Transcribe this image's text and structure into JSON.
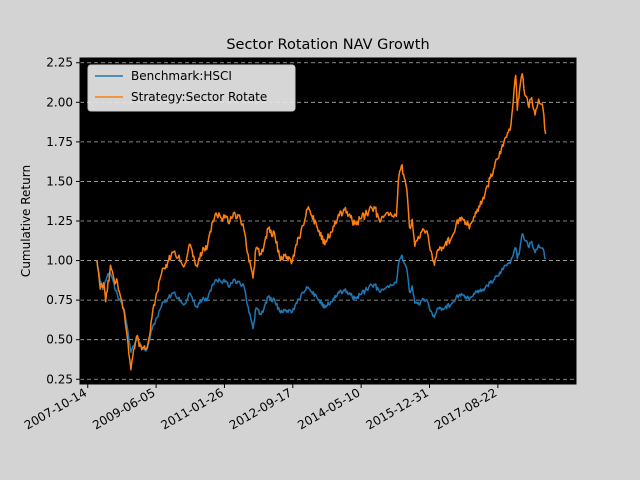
{
  "chart_data": {
    "type": "line",
    "title": "Sector Rotation NAV Growth",
    "xlabel": "",
    "ylabel": "Cumulative Return",
    "x_tick_labels": [
      "2007-10-14",
      "2009-06-05",
      "2011-01-26",
      "2012-09-17",
      "2014-05-10",
      "2015-12-31",
      "2017-08-22"
    ],
    "x_ticks": [
      "2007-10-14",
      "2009-06-05",
      "2011-01-26",
      "2012-09-17",
      "2014-05-10",
      "2015-12-31",
      "2017-08-22"
    ],
    "xlim": [
      "2007-08-07",
      "2019-07-09"
    ],
    "y_ticks": [
      0.25,
      0.5,
      0.75,
      1.0,
      1.25,
      1.5,
      1.75,
      2.0,
      2.25
    ],
    "y_tick_labels": [
      "0.25",
      "0.50",
      "0.75",
      "1.00",
      "1.25",
      "1.50",
      "1.75",
      "2.00",
      "2.25"
    ],
    "ylim": [
      0.22,
      2.28
    ],
    "grid": "y-dashed",
    "legend_position": "top-left",
    "plot_background": "#000000",
    "figure_background": "#d3d3d3",
    "series": [
      {
        "name": "Benchmark:HSCI",
        "color": "#1f77b4",
        "points": [
          [
            "2008-01-02",
            1.0
          ],
          [
            "2008-02-01",
            0.86
          ],
          [
            "2008-03-01",
            0.82
          ],
          [
            "2008-04-01",
            0.9
          ],
          [
            "2008-05-01",
            0.92
          ],
          [
            "2008-06-01",
            0.85
          ],
          [
            "2008-07-01",
            0.78
          ],
          [
            "2008-08-01",
            0.74
          ],
          [
            "2008-09-01",
            0.68
          ],
          [
            "2008-10-01",
            0.55
          ],
          [
            "2008-10-27",
            0.42
          ],
          [
            "2008-11-15",
            0.46
          ],
          [
            "2008-12-15",
            0.5
          ],
          [
            "2009-01-15",
            0.48
          ],
          [
            "2009-02-15",
            0.44
          ],
          [
            "2009-03-10",
            0.43
          ],
          [
            "2009-04-15",
            0.52
          ],
          [
            "2009-05-15",
            0.6
          ],
          [
            "2009-06-15",
            0.64
          ],
          [
            "2009-07-15",
            0.7
          ],
          [
            "2009-08-15",
            0.74
          ],
          [
            "2009-09-15",
            0.76
          ],
          [
            "2009-10-15",
            0.78
          ],
          [
            "2009-11-15",
            0.8
          ],
          [
            "2009-12-15",
            0.76
          ],
          [
            "2010-02-01",
            0.72
          ],
          [
            "2010-04-01",
            0.79
          ],
          [
            "2010-05-25",
            0.71
          ],
          [
            "2010-07-15",
            0.75
          ],
          [
            "2010-09-01",
            0.76
          ],
          [
            "2010-10-15",
            0.85
          ],
          [
            "2010-11-15",
            0.88
          ],
          [
            "2011-01-15",
            0.87
          ],
          [
            "2011-03-15",
            0.84
          ],
          [
            "2011-04-15",
            0.88
          ],
          [
            "2011-06-15",
            0.85
          ],
          [
            "2011-07-15",
            0.84
          ],
          [
            "2011-08-15",
            0.72
          ],
          [
            "2011-10-04",
            0.57
          ],
          [
            "2011-10-31",
            0.7
          ],
          [
            "2011-12-15",
            0.66
          ],
          [
            "2012-02-15",
            0.77
          ],
          [
            "2012-04-15",
            0.74
          ],
          [
            "2012-06-01",
            0.67
          ],
          [
            "2012-07-15",
            0.69
          ],
          [
            "2012-09-05",
            0.67
          ],
          [
            "2012-10-15",
            0.73
          ],
          [
            "2012-12-15",
            0.8
          ],
          [
            "2013-02-01",
            0.83
          ],
          [
            "2013-04-15",
            0.77
          ],
          [
            "2013-06-25",
            0.7
          ],
          [
            "2013-08-15",
            0.74
          ],
          [
            "2013-10-15",
            0.79
          ],
          [
            "2013-12-15",
            0.81
          ],
          [
            "2014-03-15",
            0.76
          ],
          [
            "2014-05-15",
            0.79
          ],
          [
            "2014-07-15",
            0.83
          ],
          [
            "2014-09-01",
            0.85
          ],
          [
            "2014-10-15",
            0.81
          ],
          [
            "2014-12-15",
            0.83
          ],
          [
            "2015-03-15",
            0.86
          ],
          [
            "2015-04-01",
            0.97
          ],
          [
            "2015-04-28",
            1.03
          ],
          [
            "2015-05-25",
            0.98
          ],
          [
            "2015-06-15",
            0.95
          ],
          [
            "2015-07-08",
            0.8
          ],
          [
            "2015-08-01",
            0.84
          ],
          [
            "2015-08-24",
            0.73
          ],
          [
            "2015-09-30",
            0.72
          ],
          [
            "2015-11-01",
            0.76
          ],
          [
            "2015-12-15",
            0.74
          ],
          [
            "2016-01-15",
            0.68
          ],
          [
            "2016-02-12",
            0.64
          ],
          [
            "2016-03-15",
            0.7
          ],
          [
            "2016-05-15",
            0.7
          ],
          [
            "2016-07-15",
            0.73
          ],
          [
            "2016-09-15",
            0.78
          ],
          [
            "2016-11-15",
            0.77
          ],
          [
            "2016-12-15",
            0.75
          ],
          [
            "2017-02-15",
            0.8
          ],
          [
            "2017-04-15",
            0.82
          ],
          [
            "2017-06-15",
            0.86
          ],
          [
            "2017-08-15",
            0.9
          ],
          [
            "2017-10-15",
            0.96
          ],
          [
            "2017-12-15",
            1.0
          ],
          [
            "2018-01-26",
            1.08
          ],
          [
            "2018-02-09",
            1.01
          ],
          [
            "2018-03-01",
            1.06
          ],
          [
            "2018-03-25",
            1.17
          ],
          [
            "2018-04-15",
            1.13
          ],
          [
            "2018-05-15",
            1.09
          ],
          [
            "2018-06-15",
            1.12
          ],
          [
            "2018-07-15",
            1.05
          ],
          [
            "2018-08-15",
            1.1
          ],
          [
            "2018-09-15",
            1.08
          ],
          [
            "2018-10-15",
            1.01
          ]
        ]
      },
      {
        "name": "Strategy:Sector Rotate",
        "color": "#ff7f0e",
        "points": [
          [
            "2008-01-02",
            1.0
          ],
          [
            "2008-02-01",
            0.82
          ],
          [
            "2008-03-01",
            0.86
          ],
          [
            "2008-03-20",
            0.74
          ],
          [
            "2008-05-01",
            0.97
          ],
          [
            "2008-06-01",
            0.88
          ],
          [
            "2008-07-01",
            0.86
          ],
          [
            "2008-08-01",
            0.76
          ],
          [
            "2008-09-01",
            0.66
          ],
          [
            "2008-10-01",
            0.48
          ],
          [
            "2008-10-27",
            0.31
          ],
          [
            "2008-11-20",
            0.44
          ],
          [
            "2008-12-15",
            0.52
          ],
          [
            "2009-01-15",
            0.47
          ],
          [
            "2009-02-15",
            0.45
          ],
          [
            "2009-03-10",
            0.44
          ],
          [
            "2009-04-15",
            0.55
          ],
          [
            "2009-05-15",
            0.72
          ],
          [
            "2009-06-15",
            0.8
          ],
          [
            "2009-07-15",
            0.9
          ],
          [
            "2009-08-15",
            0.95
          ],
          [
            "2009-09-15",
            0.99
          ],
          [
            "2009-10-15",
            1.03
          ],
          [
            "2009-11-15",
            1.06
          ],
          [
            "2009-12-15",
            1.02
          ],
          [
            "2010-02-01",
            0.96
          ],
          [
            "2010-04-01",
            1.1
          ],
          [
            "2010-05-25",
            0.97
          ],
          [
            "2010-07-15",
            1.05
          ],
          [
            "2010-09-01",
            1.1
          ],
          [
            "2010-10-15",
            1.25
          ],
          [
            "2010-11-15",
            1.3
          ],
          [
            "2011-01-15",
            1.27
          ],
          [
            "2011-03-15",
            1.25
          ],
          [
            "2011-04-15",
            1.3
          ],
          [
            "2011-06-15",
            1.26
          ],
          [
            "2011-07-15",
            1.2
          ],
          [
            "2011-08-15",
            1.05
          ],
          [
            "2011-10-04",
            0.89
          ],
          [
            "2011-10-31",
            1.08
          ],
          [
            "2011-12-15",
            1.04
          ],
          [
            "2012-02-15",
            1.2
          ],
          [
            "2012-04-15",
            1.15
          ],
          [
            "2012-06-01",
            1.0
          ],
          [
            "2012-07-15",
            1.04
          ],
          [
            "2012-09-05",
            0.98
          ],
          [
            "2012-10-15",
            1.1
          ],
          [
            "2012-12-15",
            1.22
          ],
          [
            "2013-02-01",
            1.34
          ],
          [
            "2013-04-15",
            1.22
          ],
          [
            "2013-06-25",
            1.1
          ],
          [
            "2013-08-15",
            1.18
          ],
          [
            "2013-10-15",
            1.27
          ],
          [
            "2013-12-15",
            1.32
          ],
          [
            "2014-03-15",
            1.23
          ],
          [
            "2014-05-15",
            1.27
          ],
          [
            "2014-07-15",
            1.31
          ],
          [
            "2014-09-01",
            1.34
          ],
          [
            "2014-10-15",
            1.26
          ],
          [
            "2014-12-15",
            1.3
          ],
          [
            "2015-03-15",
            1.28
          ],
          [
            "2015-04-01",
            1.5
          ],
          [
            "2015-04-28",
            1.6
          ],
          [
            "2015-05-25",
            1.52
          ],
          [
            "2015-06-15",
            1.45
          ],
          [
            "2015-07-08",
            1.21
          ],
          [
            "2015-08-01",
            1.26
          ],
          [
            "2015-08-24",
            1.09
          ],
          [
            "2015-09-30",
            1.14
          ],
          [
            "2015-11-01",
            1.2
          ],
          [
            "2015-12-15",
            1.17
          ],
          [
            "2016-01-15",
            1.06
          ],
          [
            "2016-02-12",
            0.97
          ],
          [
            "2016-03-15",
            1.07
          ],
          [
            "2016-05-15",
            1.1
          ],
          [
            "2016-07-15",
            1.15
          ],
          [
            "2016-09-15",
            1.26
          ],
          [
            "2016-11-15",
            1.24
          ],
          [
            "2016-12-15",
            1.2
          ],
          [
            "2017-02-15",
            1.3
          ],
          [
            "2017-04-15",
            1.4
          ],
          [
            "2017-06-15",
            1.52
          ],
          [
            "2017-08-15",
            1.64
          ],
          [
            "2017-10-15",
            1.75
          ],
          [
            "2017-12-15",
            1.86
          ],
          [
            "2018-01-26",
            2.17
          ],
          [
            "2018-02-09",
            1.95
          ],
          [
            "2018-03-01",
            2.08
          ],
          [
            "2018-03-25",
            2.18
          ],
          [
            "2018-04-15",
            2.05
          ],
          [
            "2018-05-15",
            1.98
          ],
          [
            "2018-06-15",
            2.03
          ],
          [
            "2018-07-15",
            1.92
          ],
          [
            "2018-08-15",
            2.02
          ],
          [
            "2018-09-15",
            1.99
          ],
          [
            "2018-10-15",
            1.8
          ]
        ]
      }
    ]
  }
}
